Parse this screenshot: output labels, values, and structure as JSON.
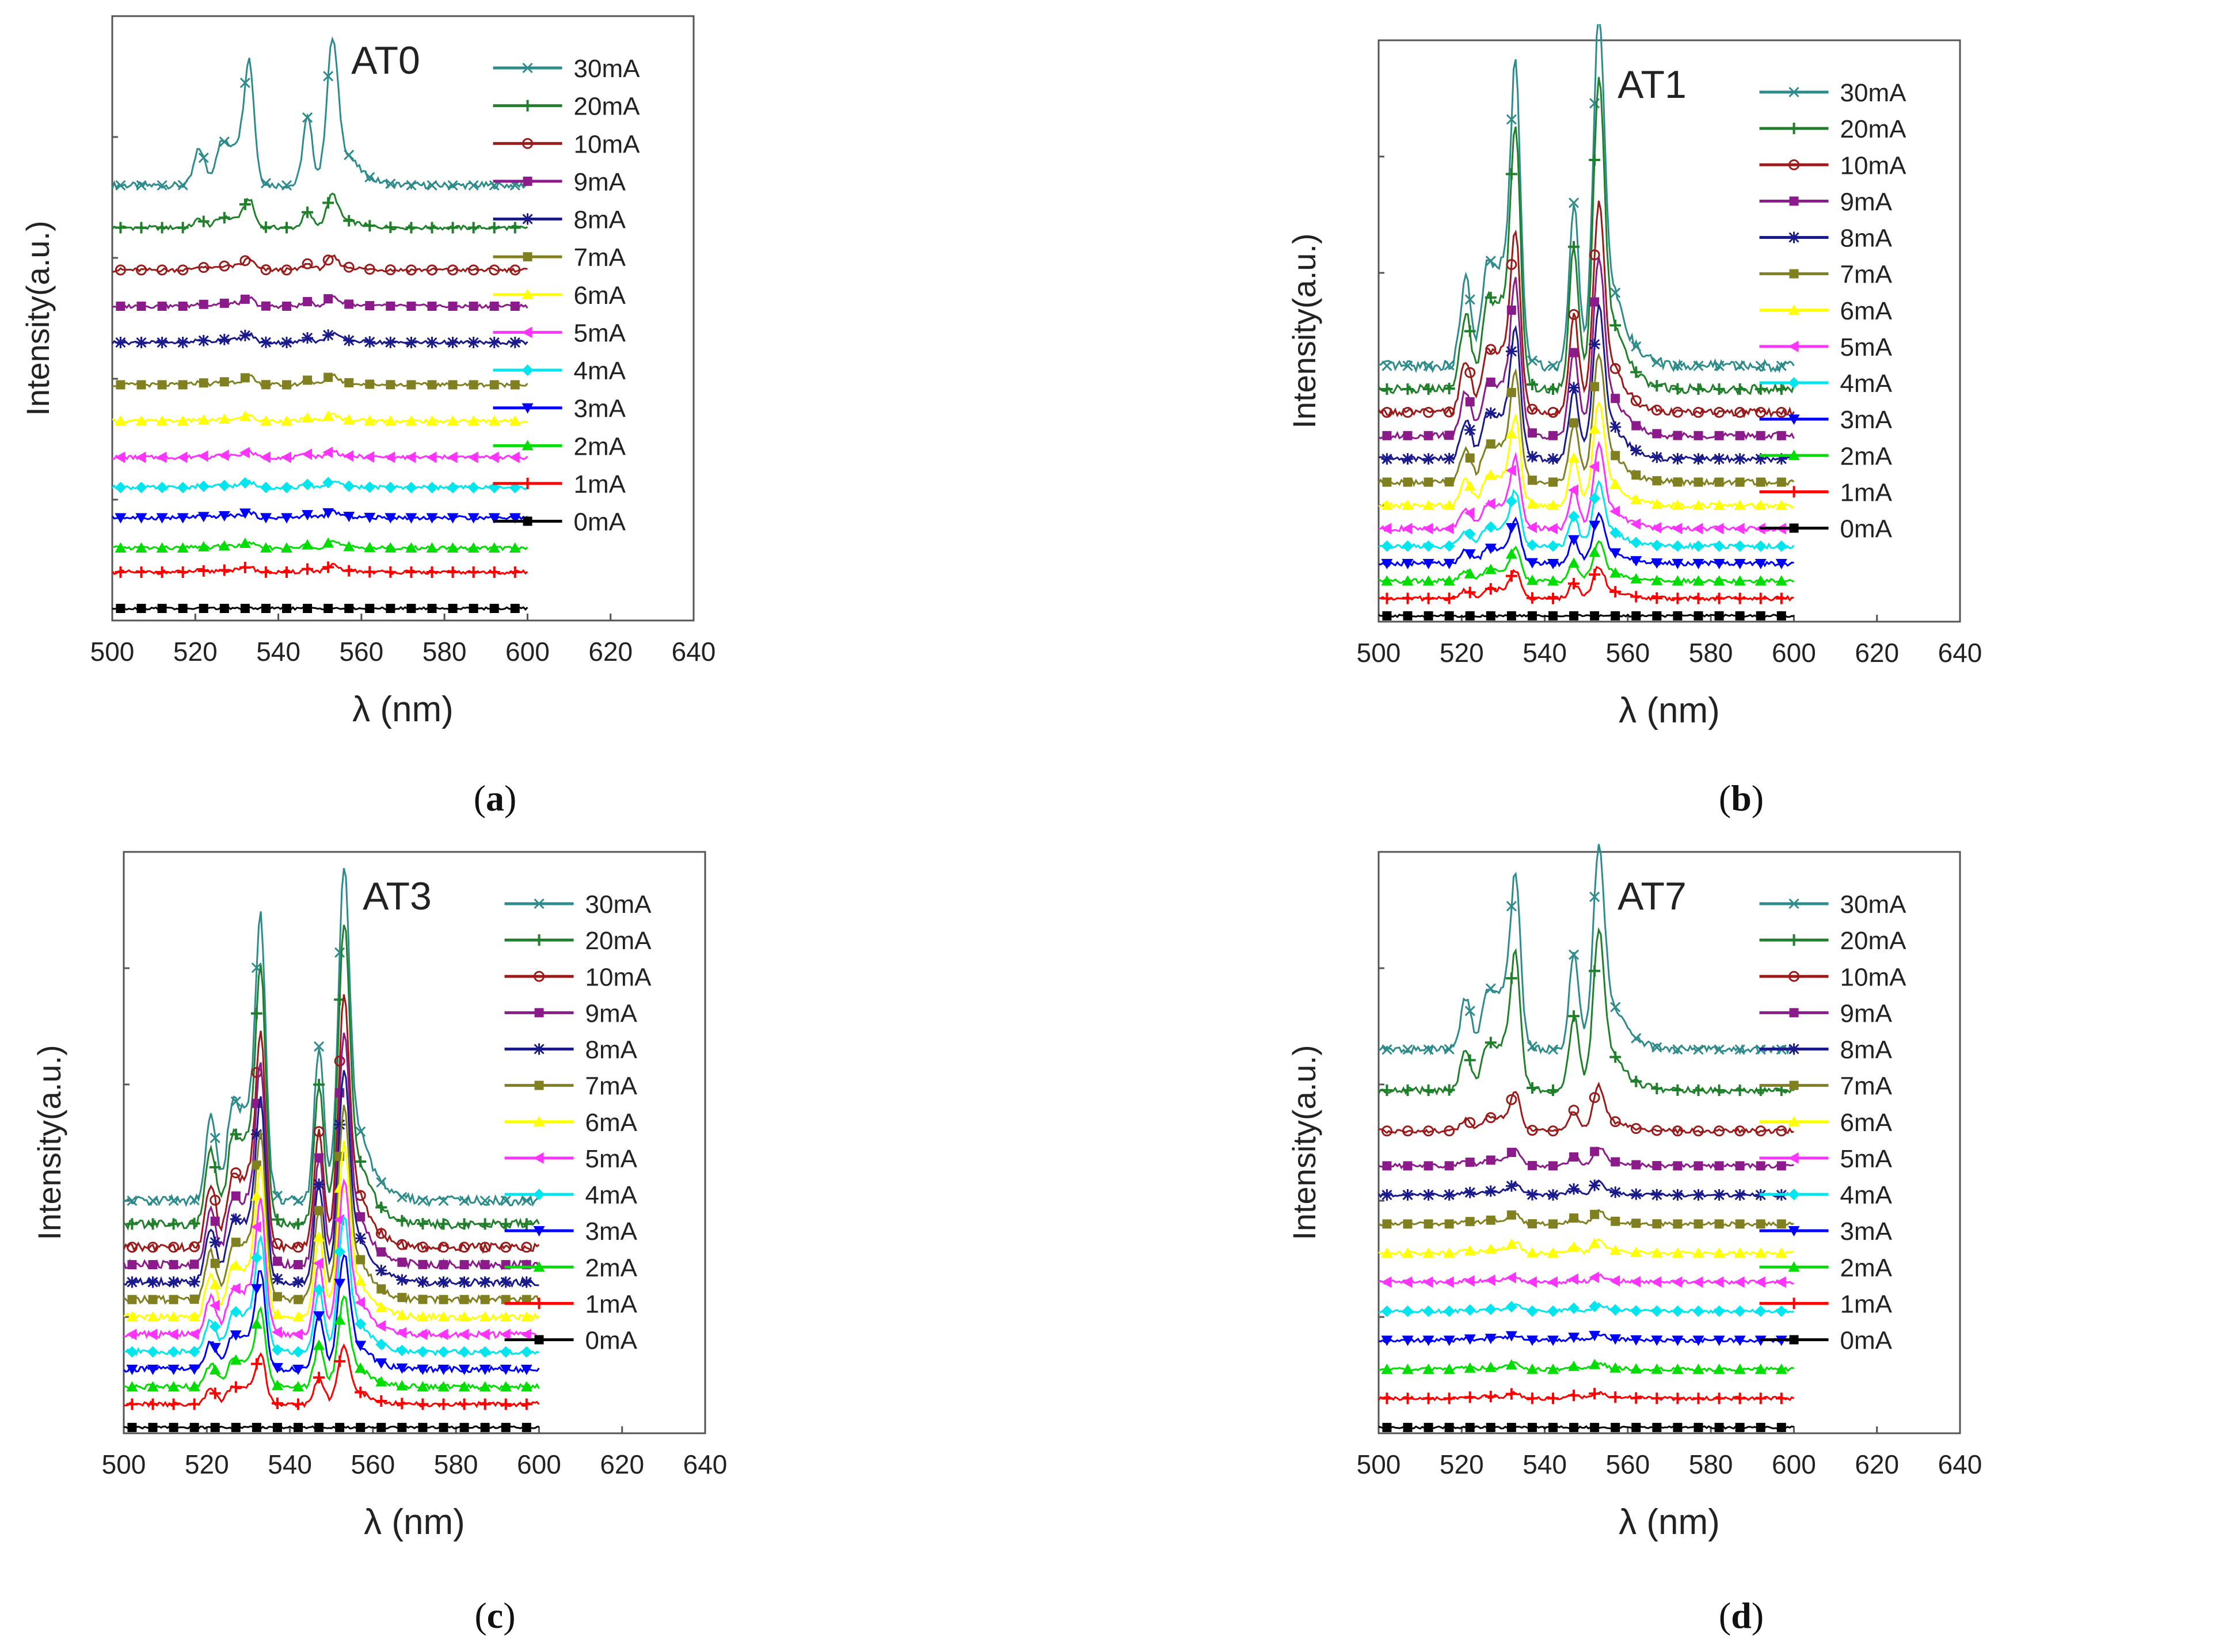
{
  "figure": {
    "legend_labels": [
      "30mA",
      "20mA",
      "10mA",
      "9mA",
      "8mA",
      "7mA",
      "6mA",
      "5mA",
      "4mA",
      "3mA",
      "2mA",
      "1mA",
      "0mA"
    ],
    "series_colors": [
      "#2e8b8b",
      "#1f7f2a",
      "#9b1b1b",
      "#8b1a8b",
      "#1a1a8b",
      "#808020",
      "#ffff00",
      "#ff33ff",
      "#00e5ee",
      "#0000ff",
      "#00dd00",
      "#ff0000",
      "#000000"
    ],
    "series_markers": [
      "x",
      "+",
      "o",
      "s",
      "*",
      "s",
      "^",
      "<",
      "d",
      "v",
      "^",
      "+",
      "s"
    ],
    "xlabel": "λ (nm)",
    "ylabel": "Intensity(a.u.)"
  },
  "panels": [
    {
      "id": "a",
      "caption_letter": "a",
      "caption_open": "(",
      "caption_close": ")",
      "chart_data": {
        "type": "line",
        "title": "AT0",
        "xlim": [
          500,
          640
        ],
        "x_ticks": [
          "500",
          "520",
          "540",
          "560",
          "580",
          "600",
          "620",
          "640"
        ],
        "peak_amplitudes": [
          0.22,
          0.05,
          0.02,
          0.015,
          0.015,
          0.015,
          0.01,
          0.01,
          0.01,
          0.01,
          0.01,
          0.01,
          0.0
        ],
        "baselines": [
          0.72,
          0.65,
          0.58,
          0.52,
          0.46,
          0.39,
          0.33,
          0.27,
          0.22,
          0.17,
          0.12,
          0.08,
          0.02
        ]
      }
    },
    {
      "id": "b",
      "caption_letter": "b",
      "caption_open": "(",
      "caption_close": ")",
      "chart_data": {
        "type": "line",
        "title": "AT1",
        "xlim": [
          500,
          640
        ],
        "x_ticks": [
          "500",
          "520",
          "540",
          "560",
          "580",
          "600",
          "620",
          "640"
        ],
        "peak_amplitudes": [
          0.55,
          0.48,
          0.33,
          0.28,
          0.24,
          0.2,
          0.16,
          0.13,
          0.1,
          0.08,
          0.06,
          0.05,
          0.0
        ],
        "baselines": [
          0.44,
          0.4,
          0.36,
          0.32,
          0.28,
          0.24,
          0.2,
          0.16,
          0.13,
          0.1,
          0.07,
          0.04,
          0.01
        ]
      }
    },
    {
      "id": "c",
      "caption_letter": "c",
      "caption_open": "(",
      "caption_close": ")",
      "chart_data": {
        "type": "line",
        "title": "AT3",
        "xlim": [
          500,
          640
        ],
        "x_ticks": [
          "500",
          "520",
          "540",
          "560",
          "580",
          "600",
          "620",
          "640"
        ],
        "peak_amplitudes": [
          0.52,
          0.47,
          0.39,
          0.36,
          0.33,
          0.3,
          0.27,
          0.24,
          0.21,
          0.18,
          0.14,
          0.09,
          0.0
        ],
        "baselines": [
          0.4,
          0.36,
          0.32,
          0.29,
          0.26,
          0.23,
          0.2,
          0.17,
          0.14,
          0.11,
          0.08,
          0.05,
          0.01
        ]
      }
    },
    {
      "id": "d",
      "caption_letter": "d",
      "caption_open": "(",
      "caption_close": ")",
      "chart_data": {
        "type": "line",
        "title": "AT7",
        "xlim": [
          500,
          640
        ],
        "x_ticks": [
          "500",
          "520",
          "540",
          "560",
          "580",
          "600",
          "620",
          "640"
        ],
        "peak_amplitudes": [
          0.32,
          0.25,
          0.07,
          0.03,
          0.02,
          0.02,
          0.02,
          0.01,
          0.01,
          0.01,
          0.01,
          0.01,
          0.0
        ],
        "baselines": [
          0.66,
          0.59,
          0.52,
          0.46,
          0.41,
          0.36,
          0.31,
          0.26,
          0.21,
          0.16,
          0.11,
          0.06,
          0.01
        ]
      }
    }
  ]
}
